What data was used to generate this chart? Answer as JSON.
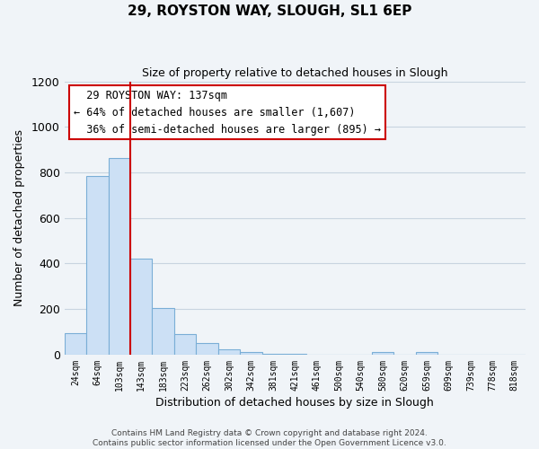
{
  "title": "29, ROYSTON WAY, SLOUGH, SL1 6EP",
  "subtitle": "Size of property relative to detached houses in Slough",
  "xlabel": "Distribution of detached houses by size in Slough",
  "ylabel": "Number of detached properties",
  "categories": [
    "24sqm",
    "64sqm",
    "103sqm",
    "143sqm",
    "183sqm",
    "223sqm",
    "262sqm",
    "302sqm",
    "342sqm",
    "381sqm",
    "421sqm",
    "461sqm",
    "500sqm",
    "540sqm",
    "580sqm",
    "620sqm",
    "659sqm",
    "699sqm",
    "739sqm",
    "778sqm",
    "818sqm"
  ],
  "values": [
    95,
    785,
    865,
    420,
    205,
    90,
    50,
    25,
    10,
    5,
    2,
    0,
    0,
    0,
    10,
    0,
    10,
    0,
    0,
    0,
    0
  ],
  "bar_color": "#cce0f5",
  "bar_edge_color": "#7aaed6",
  "vline_x": 2.5,
  "vline_color": "#cc0000",
  "annotation_text": "  29 ROYSTON WAY: 137sqm\n← 64% of detached houses are smaller (1,607)\n  36% of semi-detached houses are larger (895) →",
  "annotation_box_color": "white",
  "annotation_box_edge_color": "#cc0000",
  "ylim": [
    0,
    1200
  ],
  "yticks": [
    0,
    200,
    400,
    600,
    800,
    1000,
    1200
  ],
  "footer_text": "Contains HM Land Registry data © Crown copyright and database right 2024.\nContains public sector information licensed under the Open Government Licence v3.0.",
  "background_color": "#f0f4f8",
  "grid_color": "#c8d4e0",
  "figsize": [
    6.0,
    5.0
  ],
  "dpi": 100
}
